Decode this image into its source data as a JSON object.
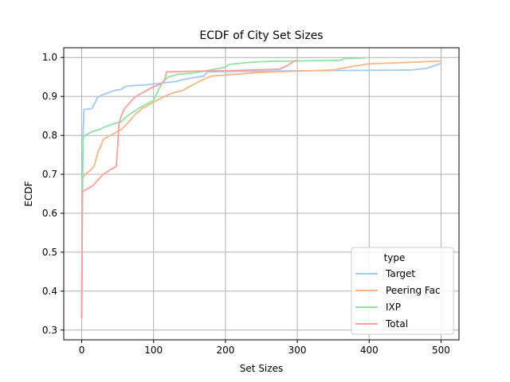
{
  "chart_data": {
    "type": "line",
    "title": "ECDF of City Set Sizes",
    "xlabel": "Set Sizes",
    "ylabel": "ECDF",
    "xlim": [
      -25,
      525
    ],
    "ylim": [
      0.275,
      1.025
    ],
    "xticks": [
      0,
      100,
      200,
      300,
      400,
      500
    ],
    "xtick_labels": [
      "0",
      "100",
      "200",
      "300",
      "400",
      "500"
    ],
    "yticks": [
      0.3,
      0.4,
      0.5,
      0.6,
      0.7,
      0.8,
      0.9,
      1.0
    ],
    "ytick_labels": [
      "0.3",
      "0.4",
      "0.5",
      "0.6",
      "0.7",
      "0.8",
      "0.9",
      "1.0"
    ],
    "grid": true,
    "legend": {
      "title": "type",
      "placement": "lower-right"
    },
    "series": [
      {
        "name": "Target",
        "color": "#a1c9f4",
        "points": [
          [
            0,
            0.33
          ],
          [
            1,
            0.6
          ],
          [
            2,
            0.8
          ],
          [
            3,
            0.866
          ],
          [
            5,
            0.867
          ],
          [
            12,
            0.868
          ],
          [
            15,
            0.87
          ],
          [
            17,
            0.88
          ],
          [
            19,
            0.885
          ],
          [
            21,
            0.895
          ],
          [
            24,
            0.9
          ],
          [
            30,
            0.905
          ],
          [
            38,
            0.91
          ],
          [
            45,
            0.915
          ],
          [
            55,
            0.918
          ],
          [
            60,
            0.925
          ],
          [
            70,
            0.928
          ],
          [
            85,
            0.929
          ],
          [
            100,
            0.932
          ],
          [
            115,
            0.935
          ],
          [
            130,
            0.938
          ],
          [
            140,
            0.943
          ],
          [
            155,
            0.948
          ],
          [
            170,
            0.952
          ],
          [
            175,
            0.963
          ],
          [
            200,
            0.964
          ],
          [
            250,
            0.965
          ],
          [
            300,
            0.966
          ],
          [
            400,
            0.967
          ],
          [
            460,
            0.968
          ],
          [
            480,
            0.972
          ],
          [
            500,
            0.985
          ]
        ]
      },
      {
        "name": "Peering Fac",
        "color": "#ffb482",
        "points": [
          [
            0,
            0.33
          ],
          [
            1,
            0.69
          ],
          [
            5,
            0.7
          ],
          [
            12,
            0.71
          ],
          [
            17,
            0.72
          ],
          [
            20,
            0.74
          ],
          [
            23,
            0.76
          ],
          [
            27,
            0.775
          ],
          [
            30,
            0.79
          ],
          [
            35,
            0.795
          ],
          [
            45,
            0.805
          ],
          [
            55,
            0.815
          ],
          [
            62,
            0.828
          ],
          [
            68,
            0.84
          ],
          [
            75,
            0.855
          ],
          [
            85,
            0.87
          ],
          [
            95,
            0.88
          ],
          [
            105,
            0.89
          ],
          [
            115,
            0.9
          ],
          [
            125,
            0.908
          ],
          [
            140,
            0.915
          ],
          [
            150,
            0.925
          ],
          [
            160,
            0.935
          ],
          [
            165,
            0.94
          ],
          [
            180,
            0.952
          ],
          [
            200,
            0.955
          ],
          [
            250,
            0.962
          ],
          [
            300,
            0.965
          ],
          [
            350,
            0.968
          ],
          [
            370,
            0.975
          ],
          [
            400,
            0.984
          ],
          [
            450,
            0.987
          ],
          [
            500,
            0.991
          ]
        ]
      },
      {
        "name": "IXP",
        "color": "#8de5a1",
        "points": [
          [
            0,
            0.33
          ],
          [
            1,
            0.66
          ],
          [
            2,
            0.795
          ],
          [
            5,
            0.8
          ],
          [
            10,
            0.805
          ],
          [
            15,
            0.81
          ],
          [
            25,
            0.815
          ],
          [
            30,
            0.82
          ],
          [
            45,
            0.83
          ],
          [
            55,
            0.835
          ],
          [
            62,
            0.848
          ],
          [
            70,
            0.858
          ],
          [
            80,
            0.87
          ],
          [
            90,
            0.88
          ],
          [
            100,
            0.89
          ],
          [
            105,
            0.91
          ],
          [
            112,
            0.935
          ],
          [
            120,
            0.95
          ],
          [
            135,
            0.957
          ],
          [
            155,
            0.96
          ],
          [
            170,
            0.965
          ],
          [
            185,
            0.97
          ],
          [
            200,
            0.975
          ],
          [
            205,
            0.982
          ],
          [
            230,
            0.987
          ],
          [
            260,
            0.99
          ],
          [
            300,
            0.991
          ],
          [
            360,
            0.993
          ],
          [
            365,
            0.997
          ],
          [
            395,
            0.999
          ]
        ]
      },
      {
        "name": "Total",
        "color": "#ff9f9b",
        "points": [
          [
            0,
            0.33
          ],
          [
            1,
            0.655
          ],
          [
            5,
            0.66
          ],
          [
            10,
            0.665
          ],
          [
            15,
            0.67
          ],
          [
            20,
            0.68
          ],
          [
            25,
            0.69
          ],
          [
            30,
            0.7
          ],
          [
            40,
            0.712
          ],
          [
            48,
            0.72
          ],
          [
            50,
            0.77
          ],
          [
            52,
            0.83
          ],
          [
            55,
            0.85
          ],
          [
            60,
            0.87
          ],
          [
            65,
            0.88
          ],
          [
            72,
            0.895
          ],
          [
            80,
            0.905
          ],
          [
            90,
            0.915
          ],
          [
            100,
            0.925
          ],
          [
            110,
            0.932
          ],
          [
            115,
            0.94
          ],
          [
            118,
            0.963
          ],
          [
            140,
            0.964
          ],
          [
            160,
            0.965
          ],
          [
            200,
            0.966
          ],
          [
            275,
            0.97
          ],
          [
            285,
            0.978
          ],
          [
            295,
            0.99
          ],
          [
            300,
            0.993
          ]
        ]
      }
    ]
  }
}
